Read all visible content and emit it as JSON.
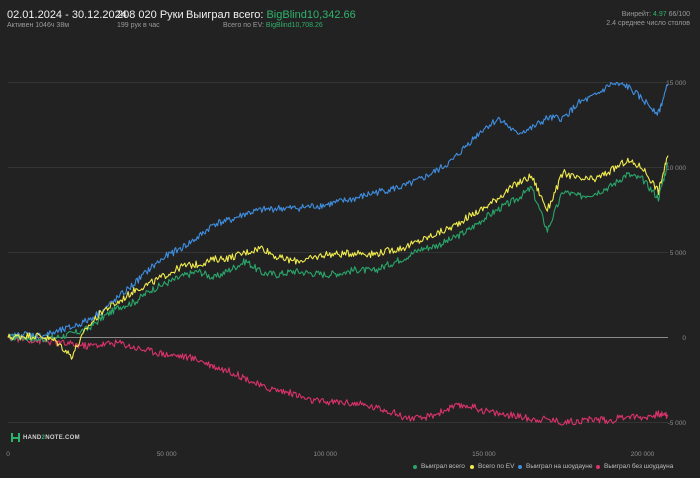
{
  "header": {
    "date_range": "02.01.2024 - 30.12.2024",
    "active_time": "Активен 1046ч 38м",
    "hands": "208 020 Руки",
    "hands_per_hour": "199 рук в час",
    "won_total_label": "Выиграл всего:",
    "won_total_value": "BigBlind10,342.66",
    "ev_total_label": "Всего по EV:",
    "ev_total_value": "BigBlind10,708.26",
    "winrate_label": "Винрейт:",
    "winrate_value": "4.97",
    "winrate_rest": "66/100",
    "avg_tables": "2.4 среднее число столов"
  },
  "logo": {
    "part1": "HAND",
    "part2": "2",
    "part3": "NOTE.COM"
  },
  "colors": {
    "background": "#222222",
    "won": "#2aa56a",
    "ev": "#f1ec4e",
    "showdown": "#3f8ee0",
    "non_showdown": "#d9336a"
  },
  "chart_data": {
    "type": "line",
    "title": "",
    "xlabel": "",
    "ylabel": "",
    "xlim": [
      0,
      208020
    ],
    "ylim": [
      -6500,
      17500
    ],
    "x_ticks": [
      {
        "value": 0,
        "label": "0"
      },
      {
        "value": 50000,
        "label": "50 000"
      },
      {
        "value": 100000,
        "label": "100 000"
      },
      {
        "value": 150000,
        "label": "150 000"
      },
      {
        "value": 200000,
        "label": "200 000"
      }
    ],
    "y_ticks": [
      {
        "value": 15000,
        "label": "15 000"
      },
      {
        "value": 10000,
        "label": "10 000"
      },
      {
        "value": 5000,
        "label": "5 000"
      },
      {
        "value": 0,
        "label": "0"
      },
      {
        "value": -5000,
        "label": "-5 000"
      }
    ],
    "grid": "horizontal",
    "legend_position": "bottom-right",
    "x": [
      0,
      5000,
      10000,
      15000,
      20000,
      25000,
      30000,
      35000,
      40000,
      45000,
      50000,
      55000,
      60000,
      65000,
      70000,
      75000,
      80000,
      85000,
      90000,
      95000,
      100000,
      105000,
      110000,
      115000,
      120000,
      125000,
      130000,
      135000,
      140000,
      145000,
      150000,
      155000,
      160000,
      165000,
      170000,
      175000,
      180000,
      185000,
      190000,
      195000,
      200000,
      205000,
      208020
    ],
    "series": [
      {
        "name": "Выиграл всего",
        "color": "#2aa56a",
        "values": [
          0,
          0,
          -100,
          0,
          200,
          500,
          1200,
          1800,
          2100,
          2800,
          3200,
          3600,
          3900,
          3500,
          4000,
          4500,
          3800,
          3700,
          3900,
          3800,
          3700,
          3800,
          4000,
          3900,
          4300,
          4700,
          5200,
          5400,
          5800,
          6300,
          7000,
          7600,
          8100,
          8800,
          6300,
          8600,
          8300,
          8500,
          8900,
          9600,
          9300,
          8200,
          10300
        ]
      },
      {
        "name": "Всего по EV",
        "color": "#f1ec4e",
        "values": [
          0,
          100,
          100,
          -200,
          -1100,
          600,
          1600,
          2100,
          2800,
          3200,
          3700,
          4200,
          4300,
          4600,
          4700,
          5000,
          5300,
          4700,
          4500,
          4600,
          4900,
          4900,
          5000,
          4900,
          5100,
          5300,
          5700,
          6100,
          6500,
          7100,
          7600,
          8300,
          9000,
          9500,
          7500,
          9700,
          9300,
          9300,
          9800,
          10400,
          10000,
          8600,
          10700
        ]
      },
      {
        "name": "Выиграл на шоудауне",
        "color": "#3f8ee0",
        "values": [
          0,
          200,
          100,
          300,
          600,
          1000,
          1600,
          2400,
          3200,
          4100,
          4800,
          5300,
          5900,
          6700,
          6900,
          7300,
          7500,
          7600,
          7600,
          7700,
          7800,
          8000,
          8200,
          8500,
          8700,
          8900,
          9300,
          9800,
          10400,
          11400,
          12300,
          12900,
          12000,
          12300,
          12900,
          12900,
          13800,
          14200,
          14900,
          14800,
          14000,
          13200,
          14900
        ]
      },
      {
        "name": "Выиграл без шоудауна",
        "color": "#d9336a",
        "values": [
          0,
          -100,
          -200,
          -300,
          -400,
          -500,
          -400,
          -300,
          -600,
          -800,
          -1000,
          -1100,
          -1300,
          -1700,
          -2000,
          -2400,
          -2900,
          -3100,
          -3300,
          -3700,
          -3800,
          -3800,
          -3900,
          -4100,
          -4300,
          -4700,
          -4800,
          -4500,
          -4100,
          -4000,
          -4300,
          -4500,
          -4600,
          -4800,
          -4800,
          -5000,
          -4900,
          -4800,
          -4900,
          -4600,
          -4700,
          -4500,
          -4600
        ]
      }
    ]
  }
}
